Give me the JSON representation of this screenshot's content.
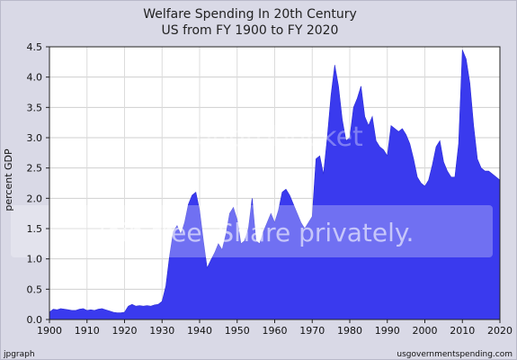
{
  "chart_data": {
    "type": "area",
    "title": "Welfare Spending In 20th Century",
    "subtitle": "US from FY 1900 to FY 2020",
    "xlabel": "",
    "ylabel": "percent GDP",
    "xlim": [
      1900,
      2020
    ],
    "ylim": [
      0,
      4.5
    ],
    "x_ticks": [
      1900,
      1910,
      1920,
      1930,
      1940,
      1950,
      1960,
      1970,
      1980,
      1990,
      2000,
      2010,
      2020
    ],
    "y_ticks": [
      "0.0",
      "0.5",
      "1.0",
      "1.5",
      "2.0",
      "2.5",
      "3.0",
      "3.5",
      "4.0",
      "4.5"
    ],
    "grid": true,
    "fill_color": "#3a3aee",
    "x": [
      1900,
      1901,
      1902,
      1903,
      1904,
      1905,
      1906,
      1907,
      1908,
      1909,
      1910,
      1911,
      1912,
      1913,
      1914,
      1915,
      1916,
      1917,
      1918,
      1919,
      1920,
      1921,
      1922,
      1923,
      1924,
      1925,
      1926,
      1927,
      1928,
      1929,
      1930,
      1931,
      1932,
      1933,
      1934,
      1935,
      1936,
      1937,
      1938,
      1939,
      1940,
      1941,
      1942,
      1943,
      1944,
      1945,
      1946,
      1947,
      1948,
      1949,
      1950,
      1951,
      1952,
      1953,
      1954,
      1955,
      1956,
      1957,
      1958,
      1959,
      1960,
      1961,
      1962,
      1963,
      1964,
      1965,
      1966,
      1967,
      1968,
      1969,
      1970,
      1971,
      1972,
      1973,
      1974,
      1975,
      1976,
      1977,
      1978,
      1979,
      1980,
      1981,
      1982,
      1983,
      1984,
      1985,
      1986,
      1987,
      1988,
      1989,
      1990,
      1991,
      1992,
      1993,
      1994,
      1995,
      1996,
      1997,
      1998,
      1999,
      2000,
      2001,
      2002,
      2003,
      2004,
      2005,
      2006,
      2007,
      2008,
      2009,
      2010,
      2011,
      2012,
      2013,
      2014,
      2015,
      2016,
      2017,
      2018,
      2019,
      2020
    ],
    "values": [
      0.12,
      0.17,
      0.16,
      0.18,
      0.17,
      0.16,
      0.15,
      0.15,
      0.17,
      0.18,
      0.15,
      0.16,
      0.15,
      0.17,
      0.18,
      0.16,
      0.14,
      0.12,
      0.11,
      0.11,
      0.12,
      0.22,
      0.25,
      0.22,
      0.23,
      0.22,
      0.23,
      0.22,
      0.24,
      0.25,
      0.3,
      0.55,
      1.05,
      1.45,
      1.55,
      1.4,
      1.6,
      1.9,
      2.05,
      2.1,
      1.8,
      1.3,
      0.85,
      0.98,
      1.1,
      1.25,
      1.15,
      1.4,
      1.75,
      1.85,
      1.65,
      1.25,
      1.3,
      1.5,
      2.0,
      1.3,
      1.25,
      1.45,
      1.6,
      1.75,
      1.6,
      1.8,
      2.1,
      2.15,
      2.05,
      1.9,
      1.75,
      1.6,
      1.5,
      1.6,
      1.7,
      2.65,
      2.7,
      2.4,
      3.0,
      3.7,
      4.2,
      3.85,
      3.3,
      2.95,
      3.0,
      3.5,
      3.65,
      3.85,
      3.35,
      3.2,
      3.35,
      2.95,
      2.85,
      2.8,
      2.7,
      3.2,
      3.15,
      3.1,
      3.15,
      3.05,
      2.9,
      2.65,
      2.35,
      2.25,
      2.2,
      2.3,
      2.55,
      2.85,
      2.95,
      2.6,
      2.45,
      2.35,
      2.35,
      2.9,
      4.45,
      4.3,
      3.9,
      3.2,
      2.65,
      2.5,
      2.45,
      2.45,
      2.4,
      2.35,
      2.3
    ]
  },
  "footer": {
    "left": "jpgraph",
    "right": "usgovernmentspending.com"
  },
  "watermark": {
    "top": "photobucket",
    "banner": "Join free. Share privately."
  }
}
